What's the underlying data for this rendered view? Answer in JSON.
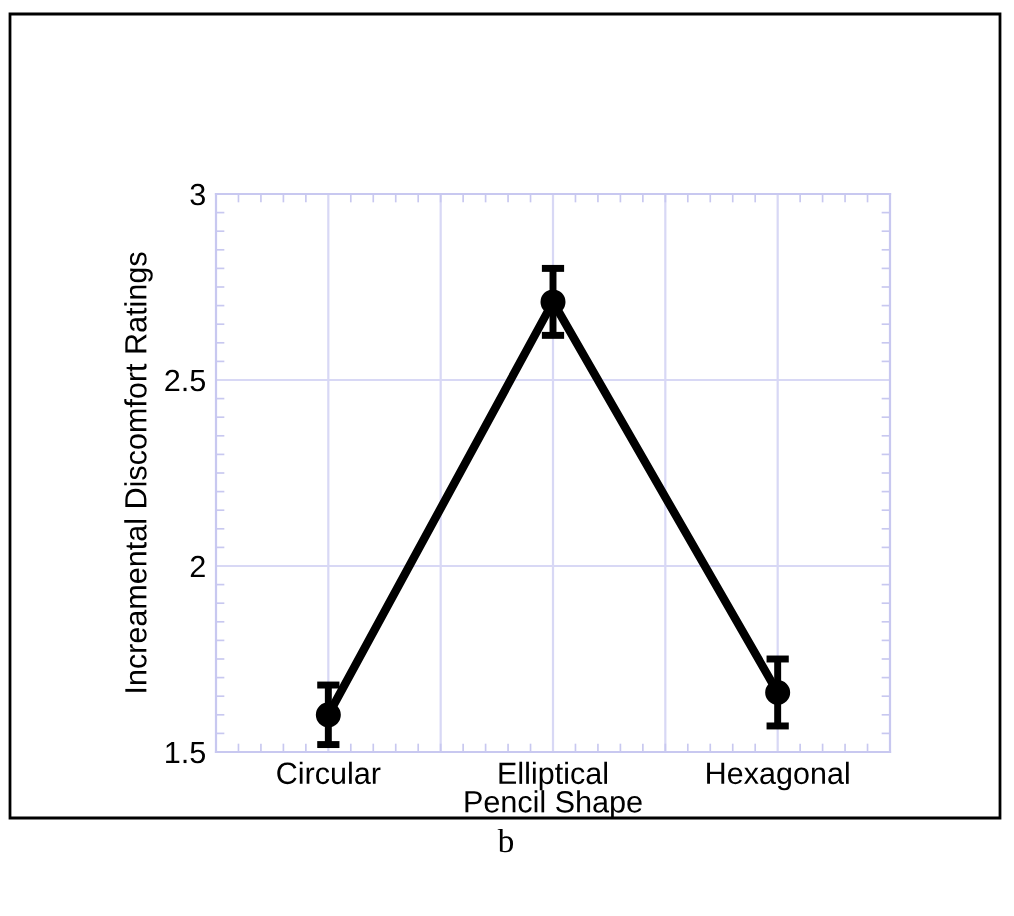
{
  "chart_data": {
    "type": "line",
    "xlabel": "Pencil Shape",
    "ylabel": "Increamental Discomfort Ratings",
    "categories": [
      "Circular",
      "Elliptical",
      "Hexagonal"
    ],
    "series": [
      {
        "color": "#000000",
        "values": [
          1.6,
          2.71,
          1.66
        ],
        "errors": [
          0.08,
          0.09,
          0.09
        ]
      }
    ],
    "ylim": [
      1.5,
      3
    ],
    "yticks": [
      1.5,
      2,
      2.5,
      3
    ],
    "grid": true,
    "marker": "circle",
    "line_style": "solid",
    "annotations": [
      "b"
    ]
  }
}
